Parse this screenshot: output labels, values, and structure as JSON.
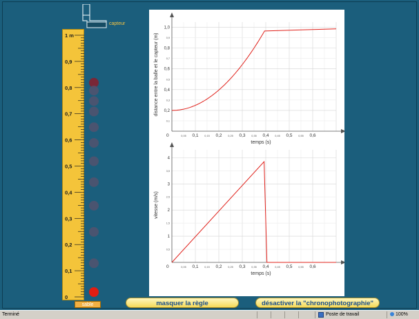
{
  "sensor": {
    "label": "capteur"
  },
  "ruler": {
    "unit_label": "1 m",
    "marks": [
      "0,9",
      "0,8",
      "0,7",
      "0,6",
      "0,5",
      "0,4",
      "0,3",
      "0,2",
      "0,1",
      "0"
    ],
    "tick_fractions": [
      0.9,
      0.8,
      0.7,
      0.6,
      0.5,
      0.4,
      0.3,
      0.2,
      0.1,
      0.0
    ]
  },
  "sand": {
    "label": "sable"
  },
  "ball_positions_m": [
    0.8,
    0.77,
    0.73,
    0.69,
    0.63,
    0.57,
    0.5,
    0.42,
    0.33,
    0.23,
    0.11,
    0.0
  ],
  "colors": {
    "background": "#1b5e7c",
    "ruler": "#f4c43a",
    "ball": "#b11d1d",
    "ball_faded": "#52526e",
    "curve": "#e0201a",
    "button_text": "#1b4f8c"
  },
  "chart_data": [
    {
      "type": "line",
      "ylabel": "distance entre la balle et le capteur (m)",
      "xlabel": "temps (s)",
      "xlim": [
        0,
        0.7
      ],
      "ylim": [
        0,
        1.05
      ],
      "x_ticks": [
        "0,1",
        "0,2",
        "0,3",
        "0,4",
        "0,5",
        "0,6"
      ],
      "x_minor_ticks": [
        "0,05",
        "0,15",
        "0,25",
        "0,35",
        "0,45",
        "0,55"
      ],
      "y_ticks": [
        "0,2",
        "0,4",
        "0,6",
        "0,8",
        "1,0"
      ],
      "y_minor_ticks": [
        "0,1",
        "0,3",
        "0,5",
        "0,7",
        "0,9"
      ],
      "origin_label": "0",
      "series": [
        {
          "x": [
            0,
            0.04,
            0.08,
            0.12,
            0.16,
            0.2,
            0.24,
            0.28,
            0.32,
            0.36,
            0.4,
            0.45,
            0.5,
            0.55,
            0.6,
            0.65,
            0.7
          ],
          "y": [
            0.2,
            0.208,
            0.231,
            0.271,
            0.325,
            0.396,
            0.482,
            0.584,
            0.702,
            0.835,
            0.985,
            0.985,
            0.985,
            0.985,
            0.985,
            0.985,
            0.985
          ]
        }
      ]
    },
    {
      "type": "line",
      "ylabel": "vitesse (m/s)",
      "xlabel": "temps (s)",
      "xlim": [
        0,
        0.7
      ],
      "ylim": [
        0,
        4.3
      ],
      "x_ticks": [
        "0,1",
        "0,2",
        "0,3",
        "0,4",
        "0,5",
        "0,6"
      ],
      "x_minor_ticks": [
        "0,05",
        "0,15",
        "0,25",
        "0,35",
        "0,45",
        "0,55"
      ],
      "y_ticks": [
        "1",
        "2",
        "3",
        "4"
      ],
      "y_minor_ticks": [
        "0,5",
        "1,5",
        "2,5",
        "3,5"
      ],
      "origin_label": "0",
      "series": [
        {
          "x": [
            0,
            0.393,
            0.405,
            0.7
          ],
          "y": [
            0,
            3.85,
            0,
            0
          ]
        }
      ]
    }
  ],
  "buttons": {
    "hide_ruler": "masquer la règle",
    "disable_chrono": "désactiver la \"chronophotographie\""
  },
  "statusbar": {
    "status": "Terminé",
    "zone": "Poste de travail",
    "zoom": "100%"
  }
}
